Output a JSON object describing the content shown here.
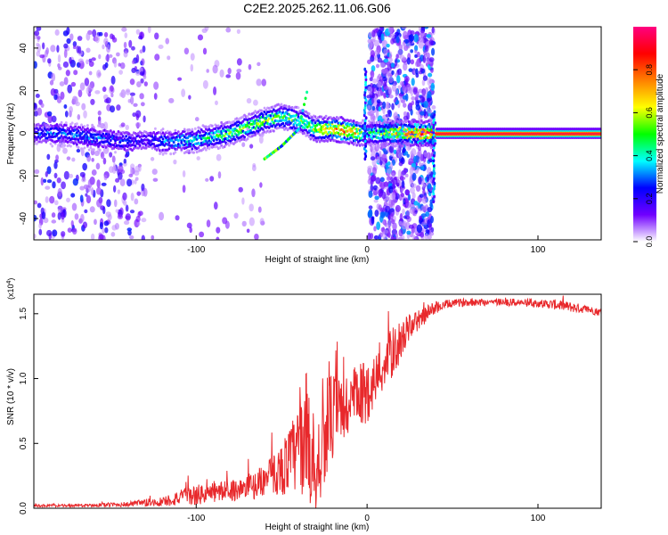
{
  "title": "C2E2.2025.262.11.06.G06",
  "chart_data": [
    {
      "type": "heatmap",
      "xlabel": "Height of straight line (km)",
      "ylabel": "Frequency (Hz)",
      "xlim": [
        -195,
        137
      ],
      "ylim": [
        -50,
        50
      ],
      "xticks": [
        -100,
        0,
        100
      ],
      "xtick_labels": [
        "-100",
        "0",
        "100"
      ],
      "yticks": [
        -40,
        -20,
        0,
        20,
        40
      ],
      "ytick_labels": [
        "-40",
        "-20",
        "0",
        "20",
        "40"
      ],
      "colorbar": {
        "label": "Normalized spectral amplitude",
        "range": [
          0,
          1
        ],
        "ticks": [
          0.0,
          0.2,
          0.4,
          0.6,
          0.8
        ],
        "tick_labels": [
          "0.0",
          "0.2",
          "0.4",
          "0.6",
          "0.8"
        ],
        "colors": [
          "#ffffff",
          "#7000ff",
          "#0000ff",
          "#00ffff",
          "#00ff00",
          "#ffff00",
          "#ff8000",
          "#ff0000",
          "#ff0080"
        ]
      },
      "ridge": {
        "x": [
          -195,
          -180,
          -160,
          -140,
          -130,
          -120,
          -100,
          -80,
          -60,
          -50,
          -40,
          -30,
          -20,
          -10,
          -5,
          0,
          40,
          137
        ],
        "y": [
          0,
          0,
          -2,
          -4,
          -3,
          -4,
          -3,
          0,
          6,
          8,
          6,
          2,
          2,
          1,
          0,
          0,
          0,
          0
        ],
        "peak_amplitude": [
          0.25,
          0.3,
          0.3,
          0.25,
          0.2,
          0.3,
          0.4,
          0.5,
          0.55,
          0.5,
          0.5,
          0.6,
          0.75,
          0.8,
          0.7,
          0.4,
          0.95,
          0.95
        ]
      },
      "branch": {
        "x": [
          -60,
          -50,
          -40,
          -35
        ],
        "y": [
          -12,
          -6,
          2,
          20
        ]
      }
    },
    {
      "type": "line",
      "xlabel": "Height of straight line (km)",
      "ylabel": "SNR (10 * v/v)",
      "multiplier_label": "(x10",
      "multiplier_exp": "4",
      "multiplier_close": ")",
      "xlim": [
        -195,
        137
      ],
      "ylim": [
        0,
        1.65
      ],
      "xticks": [
        -100,
        0,
        100
      ],
      "xtick_labels": [
        "-100",
        "0",
        "100"
      ],
      "yticks": [
        0.0,
        0.5,
        1.0,
        1.5
      ],
      "ytick_labels": [
        "0.0",
        "0.5",
        "1.0",
        "1.5"
      ],
      "series": [
        {
          "name": "SNR",
          "color": "#e8282b",
          "x": [
            -195,
            -170,
            -140,
            -120,
            -110,
            -100,
            -90,
            -80,
            -70,
            -60,
            -50,
            -40,
            -35,
            -30,
            -28,
            -25,
            -20,
            -15,
            -10,
            -5,
            0,
            5,
            10,
            15,
            20,
            25,
            30,
            40,
            50,
            60,
            80,
            100,
            110,
            120,
            130,
            137
          ],
          "y": [
            0.02,
            0.02,
            0.03,
            0.05,
            0.08,
            0.1,
            0.12,
            0.14,
            0.15,
            0.22,
            0.3,
            0.45,
            0.6,
            0.2,
            0.4,
            0.6,
            0.7,
            0.75,
            0.8,
            0.85,
            0.9,
            1.0,
            1.1,
            1.2,
            1.3,
            1.4,
            1.45,
            1.55,
            1.58,
            1.59,
            1.59,
            1.58,
            1.57,
            1.55,
            1.53,
            1.51
          ],
          "jitter": [
            0.01,
            0.01,
            0.02,
            0.04,
            0.06,
            0.08,
            0.08,
            0.08,
            0.1,
            0.12,
            0.2,
            0.35,
            0.5,
            0.45,
            0.45,
            0.4,
            0.35,
            0.3,
            0.3,
            0.25,
            0.25,
            0.2,
            0.2,
            0.2,
            0.15,
            0.1,
            0.08,
            0.05,
            0.03,
            0.03,
            0.03,
            0.03,
            0.04,
            0.04,
            0.03,
            0.03
          ]
        }
      ]
    }
  ]
}
